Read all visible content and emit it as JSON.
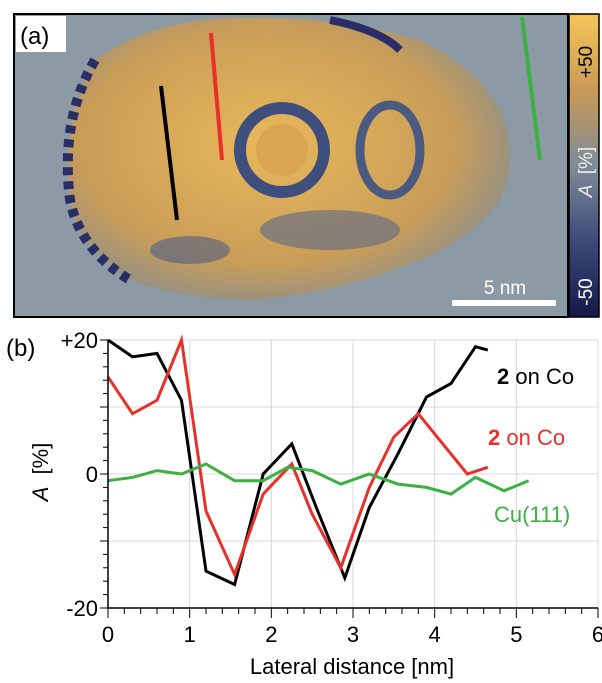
{
  "panel_a": {
    "label": "(a)",
    "scale_bar_label": "5 nm",
    "colorbar": {
      "max_label": "+50",
      "min_label": "-50",
      "quantity": "A",
      "unit": "[%]",
      "colors": [
        "#f0c060",
        "#c89a50",
        "#7a8a99",
        "#3a4a78",
        "#1a1a50"
      ]
    },
    "line_colors": {
      "black": "#000000",
      "red": "#e8302a",
      "green": "#3cb043"
    }
  },
  "panel_b": {
    "label": "(b)"
  },
  "chart_data": {
    "type": "line",
    "xlabel": "Lateral distance [nm]",
    "ylabel_quantity": "A",
    "ylabel_unit": "[%]",
    "xlim": [
      0,
      6
    ],
    "ylim": [
      -20,
      20
    ],
    "xticks": [
      0,
      1,
      2,
      3,
      4,
      5,
      6
    ],
    "yticks": [
      {
        "value": 20,
        "label": "+20"
      },
      {
        "value": 0,
        "label": "0"
      },
      {
        "value": -20,
        "label": "-20"
      }
    ],
    "grid": true,
    "series": [
      {
        "name_bold": "2",
        "name_rest": " on Co",
        "color": "#000000",
        "x": [
          0,
          0.3,
          0.6,
          0.9,
          1.2,
          1.55,
          1.9,
          2.25,
          2.55,
          2.9,
          3.2,
          3.55,
          3.9,
          4.2,
          4.5,
          4.65
        ],
        "y": [
          20,
          17.5,
          18,
          11,
          -14.5,
          -16.5,
          0,
          4.5,
          -5,
          -15.5,
          -5,
          3,
          11.5,
          13.5,
          19,
          18.5
        ]
      },
      {
        "name_bold": "2",
        "name_rest": " on Co",
        "color": "#e8302a",
        "x": [
          0,
          0.3,
          0.6,
          0.9,
          1.2,
          1.55,
          1.9,
          2.25,
          2.5,
          2.85,
          3.2,
          3.5,
          3.8,
          4.1,
          4.4,
          4.65
        ],
        "y": [
          14.5,
          9,
          11,
          20,
          -5.5,
          -15,
          -3,
          1.5,
          -6,
          -14,
          -2,
          5.5,
          9,
          4.5,
          0,
          1
        ]
      },
      {
        "name": "Cu(111)",
        "color": "#3cb043",
        "x": [
          0,
          0.3,
          0.6,
          0.9,
          1.2,
          1.55,
          1.9,
          2.2,
          2.5,
          2.85,
          3.2,
          3.55,
          3.9,
          4.2,
          4.5,
          4.85,
          5.15
        ],
        "y": [
          -1,
          -0.5,
          0.5,
          0,
          1.5,
          -1,
          -1,
          1,
          0.5,
          -1.5,
          0,
          -1.5,
          -2,
          -3,
          -0.5,
          -2.5,
          -1
        ]
      }
    ]
  }
}
